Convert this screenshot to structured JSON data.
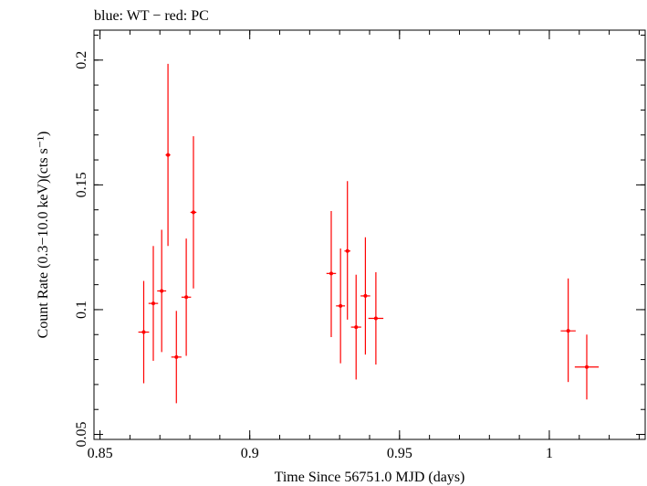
{
  "chart_data": {
    "type": "scatter",
    "title": "blue: WT − red: PC",
    "xlabel": "Time Since 56751.0 MJD (days)",
    "ylabel": "Count Rate (0.3−10.0 keV)(cts s⁻¹)",
    "xlim": [
      0.848,
      1.032
    ],
    "ylim": [
      0.048,
      0.212
    ],
    "xticks": [
      {
        "value": 0.85,
        "label": "0.85"
      },
      {
        "value": 0.9,
        "label": "0.9"
      },
      {
        "value": 0.95,
        "label": "0.95"
      },
      {
        "value": 1.0,
        "label": "1"
      }
    ],
    "yticks": [
      {
        "value": 0.05,
        "label": "0.05"
      },
      {
        "value": 0.1,
        "label": "0.1"
      },
      {
        "value": 0.15,
        "label": "0.15"
      },
      {
        "value": 0.2,
        "label": "0.2"
      }
    ],
    "grid": false,
    "series": [
      {
        "color": "#ff0000",
        "points": [
          {
            "x": 0.8646,
            "xerr": 0.0018,
            "y": 0.091,
            "ylo": 0.0705,
            "yhi": 0.1115
          },
          {
            "x": 0.8678,
            "xerr": 0.0016,
            "y": 0.1025,
            "ylo": 0.0795,
            "yhi": 0.1255
          },
          {
            "x": 0.8706,
            "xerr": 0.0015,
            "y": 0.1075,
            "ylo": 0.083,
            "yhi": 0.132
          },
          {
            "x": 0.8727,
            "xerr": 0.0008,
            "y": 0.162,
            "ylo": 0.1255,
            "yhi": 0.1985
          },
          {
            "x": 0.8755,
            "xerr": 0.0017,
            "y": 0.081,
            "ylo": 0.0625,
            "yhi": 0.0995
          },
          {
            "x": 0.8788,
            "xerr": 0.0016,
            "y": 0.105,
            "ylo": 0.0815,
            "yhi": 0.1285
          },
          {
            "x": 0.8812,
            "xerr": 0.001,
            "y": 0.139,
            "ylo": 0.1085,
            "yhi": 0.1695
          },
          {
            "x": 0.9272,
            "xerr": 0.0016,
            "y": 0.1145,
            "ylo": 0.089,
            "yhi": 0.1395
          },
          {
            "x": 0.9303,
            "xerr": 0.0015,
            "y": 0.1015,
            "ylo": 0.0785,
            "yhi": 0.1245
          },
          {
            "x": 0.9326,
            "xerr": 0.001,
            "y": 0.1235,
            "ylo": 0.096,
            "yhi": 0.1515
          },
          {
            "x": 0.9355,
            "xerr": 0.0017,
            "y": 0.093,
            "ylo": 0.072,
            "yhi": 0.114
          },
          {
            "x": 0.9386,
            "xerr": 0.0016,
            "y": 0.1055,
            "ylo": 0.082,
            "yhi": 0.129
          },
          {
            "x": 0.9421,
            "xerr": 0.0025,
            "y": 0.0965,
            "ylo": 0.078,
            "yhi": 0.115
          },
          {
            "x": 1.0063,
            "xerr": 0.0025,
            "y": 0.0915,
            "ylo": 0.071,
            "yhi": 0.1125
          },
          {
            "x": 1.0125,
            "xerr": 0.004,
            "y": 0.077,
            "ylo": 0.064,
            "yhi": 0.09
          }
        ]
      }
    ]
  }
}
